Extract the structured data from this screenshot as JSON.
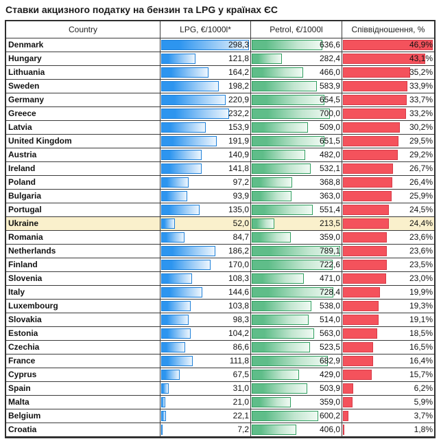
{
  "title": "Ставки акцизного податку на бензин та LPG у країнах ЄС",
  "table": {
    "columns": [
      "Country",
      "LPG, €/1000l*",
      "Petrol, €/1000l",
      "Співвідношення, %"
    ],
    "highlighted_row": "Ukraine"
  },
  "colors": {
    "lpg_bar_start": "#2d95ef",
    "lpg_bar_mid": "#9ecdf7",
    "lpg_bar_end": "#edf6fe",
    "lpg_bar_border": "#1c7fd8",
    "petrol_bar_start": "#5fbd89",
    "petrol_bar_mid": "#c2e6d0",
    "petrol_bar_end": "#f0faf3",
    "petrol_bar_border": "#2f9e5f",
    "ratio_bar_fill": "#f4525c",
    "ratio_bar_border": "#d63a47",
    "highlight_row_bg": "#faf0cc",
    "grid_line": "#3a3a3a"
  },
  "chart_data": {
    "type": "table",
    "title": "Ставки акцизного податку на бензин та LPG у країнах ЄС",
    "columns": [
      "Country",
      "LPG, €/1000l*",
      "Petrol, €/1000l",
      "Співвідношення, %"
    ],
    "number_format": "decimal-comma, one decimal place; ratio shown with % suffix",
    "bar_scale_max": {
      "lpg": 298.3,
      "petrol": 789.1,
      "ratio": 46.9
    },
    "rows": [
      {
        "country": "Denmark",
        "lpg": 298.3,
        "petrol": 636.6,
        "ratio": 46.9,
        "highlight": false
      },
      {
        "country": "Hungary",
        "lpg": 121.8,
        "petrol": 282.4,
        "ratio": 43.1,
        "highlight": false
      },
      {
        "country": "Lithuania",
        "lpg": 164.2,
        "petrol": 466.0,
        "ratio": 35.2,
        "highlight": false
      },
      {
        "country": "Sweden",
        "lpg": 198.2,
        "petrol": 583.9,
        "ratio": 33.9,
        "highlight": false
      },
      {
        "country": "Germany",
        "lpg": 220.9,
        "petrol": 654.5,
        "ratio": 33.7,
        "highlight": false
      },
      {
        "country": "Greece",
        "lpg": 232.2,
        "petrol": 700.0,
        "ratio": 33.2,
        "highlight": false
      },
      {
        "country": "Latvia",
        "lpg": 153.9,
        "petrol": 509.0,
        "ratio": 30.2,
        "highlight": false
      },
      {
        "country": "United Kingdom",
        "lpg": 191.9,
        "petrol": 651.5,
        "ratio": 29.5,
        "highlight": false
      },
      {
        "country": "Austria",
        "lpg": 140.9,
        "petrol": 482.0,
        "ratio": 29.2,
        "highlight": false
      },
      {
        "country": "Ireland",
        "lpg": 141.8,
        "petrol": 532.1,
        "ratio": 26.7,
        "highlight": false
      },
      {
        "country": "Poland",
        "lpg": 97.2,
        "petrol": 368.8,
        "ratio": 26.4,
        "highlight": false
      },
      {
        "country": "Bulgaria",
        "lpg": 93.9,
        "petrol": 363.0,
        "ratio": 25.9,
        "highlight": false
      },
      {
        "country": "Portugal",
        "lpg": 135.0,
        "petrol": 551.4,
        "ratio": 24.5,
        "highlight": false
      },
      {
        "country": "Ukraine",
        "lpg": 52.0,
        "petrol": 213.5,
        "ratio": 24.4,
        "highlight": true
      },
      {
        "country": "Romania",
        "lpg": 84.7,
        "petrol": 359.0,
        "ratio": 23.6,
        "highlight": false
      },
      {
        "country": "Netherlands",
        "lpg": 186.2,
        "petrol": 789.1,
        "ratio": 23.6,
        "highlight": false
      },
      {
        "country": "Finland",
        "lpg": 170.0,
        "petrol": 722.6,
        "ratio": 23.5,
        "highlight": false
      },
      {
        "country": "Slovenia",
        "lpg": 108.3,
        "petrol": 471.0,
        "ratio": 23.0,
        "highlight": false
      },
      {
        "country": "Italy",
        "lpg": 144.6,
        "petrol": 728.4,
        "ratio": 19.9,
        "highlight": false
      },
      {
        "country": "Luxembourg",
        "lpg": 103.8,
        "petrol": 538.0,
        "ratio": 19.3,
        "highlight": false
      },
      {
        "country": "Slovakia",
        "lpg": 98.3,
        "petrol": 514.0,
        "ratio": 19.1,
        "highlight": false
      },
      {
        "country": "Estonia",
        "lpg": 104.2,
        "petrol": 563.0,
        "ratio": 18.5,
        "highlight": false
      },
      {
        "country": "Czechia",
        "lpg": 86.6,
        "petrol": 523.5,
        "ratio": 16.5,
        "highlight": false
      },
      {
        "country": "France",
        "lpg": 111.8,
        "petrol": 682.9,
        "ratio": 16.4,
        "highlight": false
      },
      {
        "country": "Cyprus",
        "lpg": 67.5,
        "petrol": 429.0,
        "ratio": 15.7,
        "highlight": false
      },
      {
        "country": "Spain",
        "lpg": 31.0,
        "petrol": 503.9,
        "ratio": 6.2,
        "highlight": false
      },
      {
        "country": "Malta",
        "lpg": 21.0,
        "petrol": 359.0,
        "ratio": 5.9,
        "highlight": false
      },
      {
        "country": "Belgium",
        "lpg": 22.1,
        "petrol": 600.2,
        "ratio": 3.7,
        "highlight": false
      },
      {
        "country": "Croatia",
        "lpg": 7.2,
        "petrol": 406.0,
        "ratio": 1.8,
        "highlight": false
      }
    ]
  }
}
